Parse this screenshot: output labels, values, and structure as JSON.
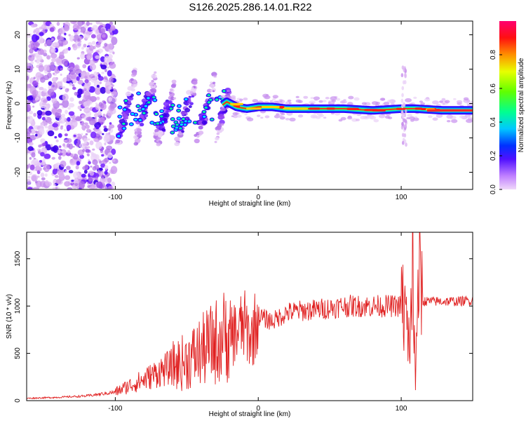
{
  "title": "S126.2025.286.14.01.R22",
  "chart_data": [
    {
      "type": "heatmap",
      "xlabel": "Height of straight line (km)",
      "ylabel": "Frequency (Hz)",
      "xlim": [
        -162,
        150
      ],
      "ylim": [
        -25,
        24
      ],
      "x_ticks": [
        -100,
        0,
        100
      ],
      "y_ticks": [
        -20,
        -10,
        0,
        10,
        20
      ],
      "colorbar": {
        "label": "Normalized spectral amplitude",
        "range": [
          0.0,
          1.0
        ],
        "ticks": [
          "0.0",
          "0.2",
          "0.4",
          "0.6",
          "0.8"
        ],
        "colors": [
          "#e8c8f4",
          "#a050ff",
          "#4000ff",
          "#0040ff",
          "#00ffff",
          "#00ff40",
          "#80ff00",
          "#ffff00",
          "#ff8000",
          "#ff0000",
          "#ff0080"
        ]
      },
      "ridge": {
        "x": [
          -98,
          -90,
          -80,
          -70,
          -60,
          -50,
          -40,
          -30,
          -22,
          -15,
          -8,
          0,
          10,
          20,
          40,
          60,
          80,
          100,
          110,
          130,
          150
        ],
        "freq": [
          -6,
          -2,
          -1,
          -3,
          -4,
          -3,
          -2,
          -2,
          0.5,
          -1,
          -1.5,
          -1,
          -1,
          -1.5,
          -1.5,
          -1.5,
          -2,
          -1.5,
          -1.5,
          -2,
          -2
        ]
      }
    },
    {
      "type": "line",
      "xlabel": "Height of straight line (km)",
      "ylabel": "SNR (10 * v/v)",
      "xlim": [
        -162,
        150
      ],
      "ylim": [
        0,
        1780
      ],
      "x_ticks": [
        -100,
        0,
        100
      ],
      "y_ticks": [
        0,
        500,
        1000,
        1500
      ],
      "line_color": "#e02020",
      "series": [
        {
          "name": "SNR",
          "x": [
            -162,
            -140,
            -120,
            -100,
            -90,
            -80,
            -70,
            -60,
            -50,
            -40,
            -30,
            -22,
            -15,
            -10,
            -5,
            0,
            5,
            10,
            20,
            30,
            40,
            60,
            80,
            100,
            103,
            106,
            108,
            110,
            112,
            115,
            120,
            130,
            140,
            150
          ],
          "y": [
            25,
            35,
            50,
            90,
            160,
            220,
            300,
            360,
            420,
            520,
            620,
            700,
            720,
            800,
            650,
            900,
            860,
            840,
            930,
            950,
            960,
            1000,
            1000,
            1000,
            900,
            600,
            1300,
            100,
            1600,
            1050,
            1050,
            1050,
            1050,
            1060
          ]
        }
      ]
    }
  ]
}
